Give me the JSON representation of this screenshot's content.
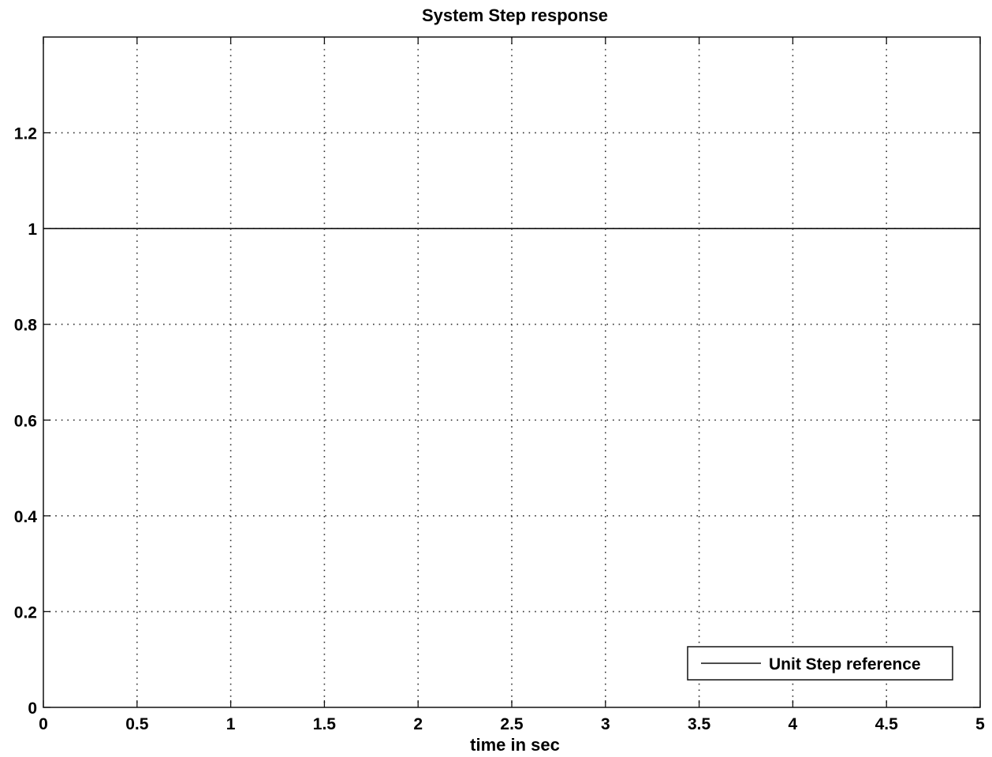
{
  "chart_data": {
    "type": "line",
    "title": "System Step response",
    "xlabel": "time in sec",
    "ylabel": "",
    "xlim": [
      0,
      5
    ],
    "ylim": [
      0,
      1.4
    ],
    "xticks": [
      0,
      0.5,
      1,
      1.5,
      2,
      2.5,
      3,
      3.5,
      4,
      4.5,
      5
    ],
    "xtick_labels": [
      "0",
      "0.5",
      "1",
      "1.5",
      "2",
      "2.5",
      "3",
      "3.5",
      "4",
      "4.5",
      "5"
    ],
    "yticks": [
      0,
      0.2,
      0.4,
      0.6,
      0.8,
      1,
      1.2
    ],
    "ytick_labels": [
      "0",
      "0.2",
      "0.4",
      "0.6",
      "0.8",
      "1",
      "1.2"
    ],
    "grid": true,
    "legend_position": "bottom-right",
    "series": [
      {
        "name": "Unit Step reference",
        "color": "#111111",
        "x": [
          0,
          5
        ],
        "y": [
          1,
          1
        ]
      }
    ]
  }
}
